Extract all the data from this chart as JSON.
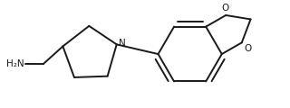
{
  "background_color": "#ffffff",
  "line_color": "#1a1a1a",
  "line_width": 1.4,
  "figsize": [
    3.2,
    1.2
  ],
  "dpi": 100,
  "N_label": "N",
  "O_label": "O",
  "NH2_label": "H₂N",
  "xlim": [
    0.0,
    1.0
  ],
  "ylim": [
    0.0,
    1.0
  ]
}
